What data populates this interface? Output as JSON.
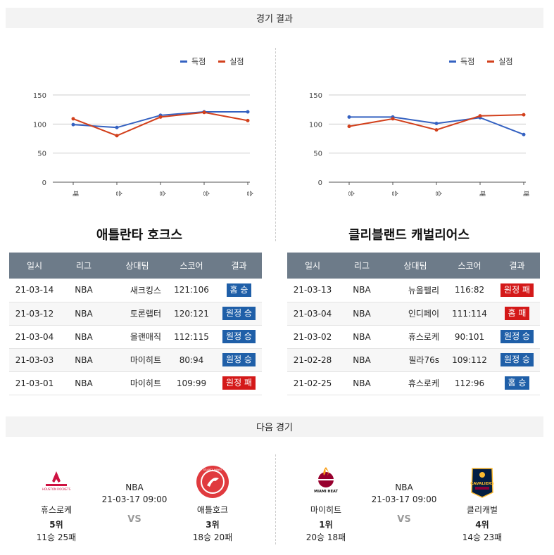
{
  "header": {
    "results_title": "경기 결과",
    "next_title": "다음 경기"
  },
  "legend": {
    "scored": "득점",
    "conceded": "실점",
    "scored_color": "#3461c1",
    "conceded_color": "#d2401c"
  },
  "charts": [
    {
      "type": "line",
      "categories": [
        "패",
        "승",
        "승",
        "승",
        "승"
      ],
      "ylim": [
        0,
        150
      ],
      "yticks": [
        "0",
        "50",
        "100",
        "150"
      ],
      "series": [
        {
          "name": "득점",
          "values": [
            99,
            94,
            115,
            121,
            121
          ]
        },
        {
          "name": "실점",
          "values": [
            109,
            80,
            112,
            120,
            106
          ]
        }
      ]
    },
    {
      "type": "line",
      "categories": [
        "승",
        "승",
        "승",
        "패",
        "패"
      ],
      "ylim": [
        0,
        150
      ],
      "yticks": [
        "0",
        "50",
        "100",
        "150"
      ],
      "series": [
        {
          "name": "득점",
          "values": [
            112,
            112,
            101,
            111,
            82
          ]
        },
        {
          "name": "실점",
          "values": [
            96,
            109,
            90,
            114,
            116
          ]
        }
      ]
    }
  ],
  "teams": [
    {
      "title": "애틀란타 호크스",
      "columns": [
        "일시",
        "리그",
        "상대팀",
        "스코어",
        "결과"
      ],
      "rows": [
        {
          "date": "21-03-14",
          "league": "NBA",
          "opponent": "새크킹스",
          "score": "121:106",
          "result": "홈 승",
          "win": true
        },
        {
          "date": "21-03-12",
          "league": "NBA",
          "opponent": "토론랩터",
          "score": "120:121",
          "result": "원정 승",
          "win": true
        },
        {
          "date": "21-03-04",
          "league": "NBA",
          "opponent": "올랜매직",
          "score": "112:115",
          "result": "원정 승",
          "win": true
        },
        {
          "date": "21-03-03",
          "league": "NBA",
          "opponent": "마이히트",
          "score": "80:94",
          "result": "원정 승",
          "win": true
        },
        {
          "date": "21-03-01",
          "league": "NBA",
          "opponent": "마이히트",
          "score": "109:99",
          "result": "원정 패",
          "win": false
        }
      ]
    },
    {
      "title": "클리블랜드 캐벌리어스",
      "columns": [
        "일시",
        "리그",
        "상대팀",
        "스코어",
        "결과"
      ],
      "rows": [
        {
          "date": "21-03-13",
          "league": "NBA",
          "opponent": "뉴올펠리",
          "score": "116:82",
          "result": "원정 패",
          "win": false
        },
        {
          "date": "21-03-04",
          "league": "NBA",
          "opponent": "인디페이",
          "score": "111:114",
          "result": "홈 패",
          "win": false
        },
        {
          "date": "21-03-02",
          "league": "NBA",
          "opponent": "휴스로케",
          "score": "90:101",
          "result": "원정 승",
          "win": true
        },
        {
          "date": "21-02-28",
          "league": "NBA",
          "opponent": "필라76s",
          "score": "109:112",
          "result": "원정 승",
          "win": true
        },
        {
          "date": "21-02-25",
          "league": "NBA",
          "opponent": "휴스로케",
          "score": "112:96",
          "result": "홈 승",
          "win": true
        }
      ]
    }
  ],
  "next_games": [
    {
      "league": "NBA",
      "datetime": "21-03-17 09:00",
      "vs": "VS",
      "home": {
        "name": "휴스로케",
        "rank": "5위",
        "record": "11승 25패",
        "logo_text": "HOUSTON ROCKETS",
        "logo_icon": "rockets-logo-icon"
      },
      "away": {
        "name": "애틀호크",
        "rank": "3위",
        "record": "18승 20패",
        "logo_text": "ATLANTA HAWKS",
        "logo_icon": "hawks-logo-icon"
      }
    },
    {
      "league": "NBA",
      "datetime": "21-03-17 09:00",
      "vs": "VS",
      "home": {
        "name": "마이히트",
        "rank": "1위",
        "record": "20승 18패",
        "logo_text": "MIAMI HEAT",
        "logo_icon": "heat-logo-icon"
      },
      "away": {
        "name": "클리캐벌",
        "rank": "4위",
        "record": "14승 23패",
        "logo_text": "CAVALIERS",
        "logo_icon": "cavaliers-logo-icon"
      }
    }
  ]
}
